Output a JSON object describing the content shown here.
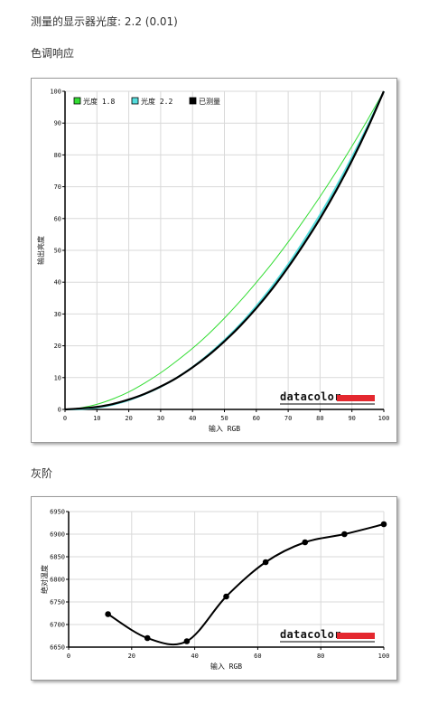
{
  "header": {
    "gamma_label": "测量的显示器光度:",
    "gamma_value": "2.2 (0.01)",
    "tone_title": "色调响应",
    "gray_title": "灰阶"
  },
  "brand": {
    "logo_text": "datacolor",
    "logo_accent": "#e4282f"
  },
  "chart_data": [
    {
      "type": "line",
      "title": "",
      "xlabel": "输入 RGB",
      "ylabel": "输出亮度",
      "xlim": [
        0,
        100
      ],
      "ylim": [
        0,
        100
      ],
      "xticks": [
        0,
        10,
        20,
        30,
        40,
        50,
        60,
        70,
        80,
        90,
        100
      ],
      "yticks": [
        0,
        10,
        20,
        30,
        40,
        50,
        60,
        70,
        80,
        90,
        100
      ],
      "grid": true,
      "legend_position": "top-left",
      "series": [
        {
          "name": "光度 1.8",
          "color": "#33dd33",
          "x": [
            0,
            5,
            10,
            15,
            20,
            25,
            30,
            35,
            40,
            45,
            50,
            55,
            60,
            65,
            70,
            75,
            80,
            85,
            90,
            95,
            100
          ],
          "y": [
            0,
            0.5,
            1.6,
            3.3,
            5.5,
            8.3,
            11.5,
            15.2,
            19.2,
            23.7,
            28.7,
            34.1,
            39.9,
            46.0,
            52.6,
            59.6,
            66.9,
            74.6,
            82.7,
            91.2,
            100
          ]
        },
        {
          "name": "光度 2.2",
          "color": "#55dddd",
          "x": [
            0,
            5,
            10,
            15,
            20,
            25,
            30,
            35,
            40,
            45,
            50,
            55,
            60,
            65,
            70,
            75,
            80,
            85,
            90,
            95,
            100
          ],
          "y": [
            0,
            0.1,
            0.6,
            1.5,
            2.9,
            4.8,
            7.1,
            9.9,
            13.3,
            17.3,
            21.8,
            26.8,
            32.5,
            38.7,
            45.6,
            53.2,
            61.2,
            69.9,
            79.3,
            89.3,
            100
          ]
        },
        {
          "name": "已测量",
          "color": "#000000",
          "x": [
            0,
            5,
            10,
            15,
            20,
            25,
            30,
            35,
            40,
            45,
            50,
            55,
            60,
            65,
            70,
            75,
            80,
            85,
            90,
            95,
            100
          ],
          "y": [
            0,
            0.3,
            0.8,
            1.7,
            3.1,
            4.9,
            7.2,
            9.9,
            13.2,
            17.0,
            21.4,
            26.3,
            31.8,
            37.9,
            44.7,
            52.1,
            60.0,
            68.7,
            78.2,
            88.6,
            100
          ]
        }
      ]
    },
    {
      "type": "line",
      "title": "",
      "xlabel": "输入 RGB",
      "ylabel": "绝对温度",
      "xlim": [
        0,
        100
      ],
      "ylim": [
        6650,
        6950
      ],
      "xticks": [
        0,
        20,
        40,
        60,
        80,
        100
      ],
      "yticks": [
        6650,
        6700,
        6750,
        6800,
        6850,
        6900,
        6950
      ],
      "grid": true,
      "series": [
        {
          "name": "",
          "color": "#000000",
          "x": [
            12.5,
            25,
            37.5,
            50,
            62.5,
            75,
            87.5,
            100
          ],
          "y": [
            6723,
            6670,
            6663,
            6762,
            6838,
            6882,
            6900,
            6922
          ]
        }
      ]
    }
  ]
}
